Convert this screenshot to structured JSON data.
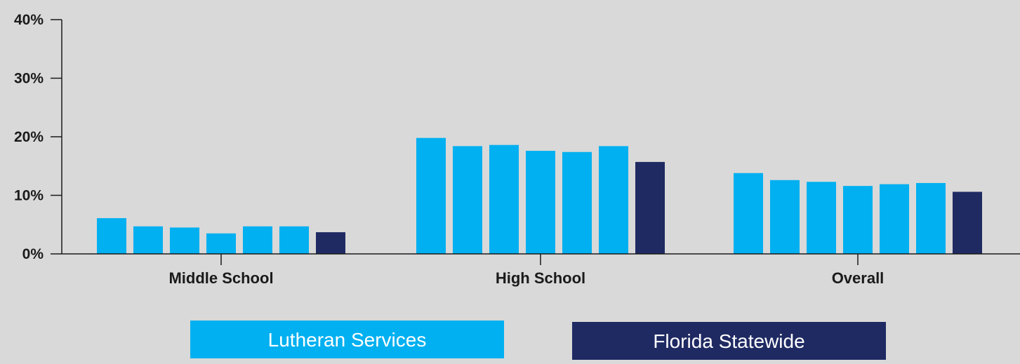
{
  "chart_data": {
    "type": "bar",
    "categories": [
      "Middle School",
      "High School",
      "Overall"
    ],
    "series": [
      {
        "name": "Lutheran Services",
        "color": "#00b0f0",
        "values": [
          [
            6.1,
            4.7,
            4.5,
            3.5,
            4.7,
            4.7
          ],
          [
            19.8,
            18.4,
            18.6,
            17.6,
            17.4,
            18.4
          ],
          [
            13.8,
            12.6,
            12.3,
            11.6,
            11.9,
            12.1
          ]
        ]
      },
      {
        "name": "Florida Statewide",
        "color": "#1f2a63",
        "values": [
          3.7,
          15.7,
          10.6
        ]
      }
    ],
    "yticks": [
      "0%",
      "10%",
      "20%",
      "30%",
      "40%"
    ],
    "ylim": [
      0,
      40
    ],
    "grid": false,
    "legend_position": "bottom"
  }
}
